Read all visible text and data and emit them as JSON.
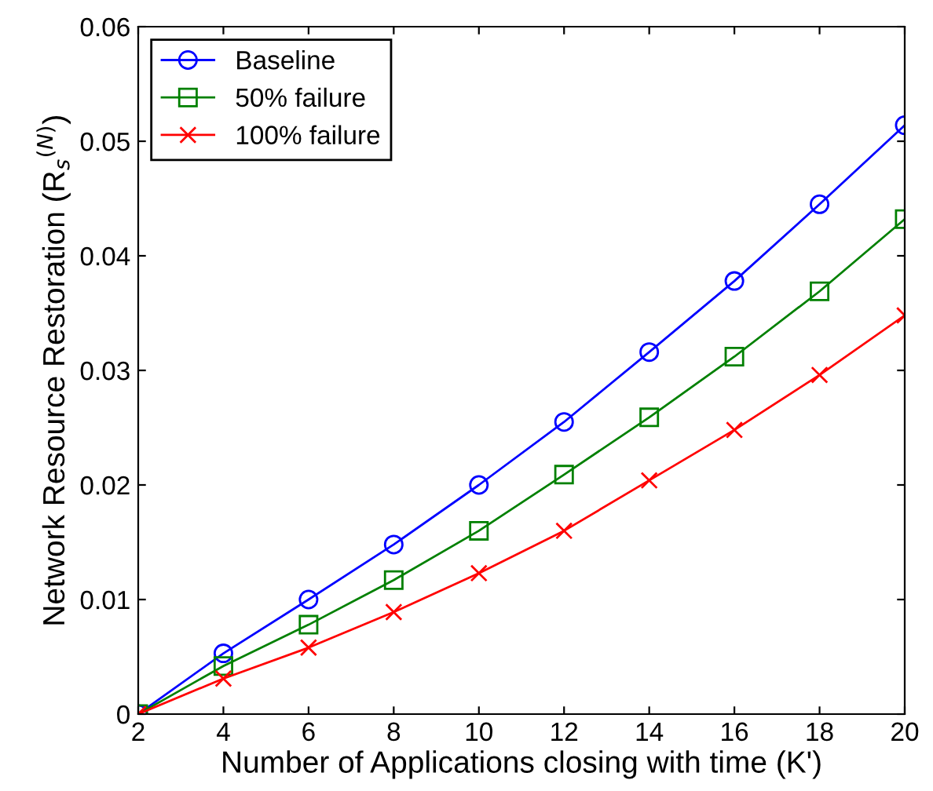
{
  "chart_data": {
    "type": "line",
    "xlabel": "Number of Applications closing with time (K')",
    "ylabel": "Network Resource Restoration (R$_{s}$$^{(N)}$)",
    "x": [
      2,
      4,
      6,
      8,
      10,
      12,
      14,
      16,
      18,
      20
    ],
    "series": [
      {
        "name": "Baseline",
        "color": "#0000ff",
        "marker": "circle",
        "values": [
          0,
          0.0053,
          0.01,
          0.0148,
          0.02,
          0.0255,
          0.0316,
          0.0378,
          0.0445,
          0.0514
        ]
      },
      {
        "name": "50% failure",
        "color": "#008000",
        "marker": "square",
        "values": [
          0,
          0.0042,
          0.0078,
          0.0117,
          0.016,
          0.0209,
          0.0259,
          0.0312,
          0.0369,
          0.0432
        ]
      },
      {
        "name": "100% failure",
        "color": "#ff0000",
        "marker": "cross",
        "values": [
          0,
          0.0031,
          0.0058,
          0.0089,
          0.0123,
          0.016,
          0.0204,
          0.0248,
          0.0296,
          0.0348
        ]
      }
    ],
    "xlim": [
      2,
      20
    ],
    "xticks": [
      2,
      4,
      6,
      8,
      10,
      12,
      14,
      16,
      18,
      20
    ],
    "ylim": [
      0,
      0.06
    ],
    "yticks": [
      0,
      0.01,
      0.02,
      0.03,
      0.04,
      0.05,
      0.06
    ],
    "grid": false,
    "legend": "top left",
    "line_style": "solid"
  }
}
